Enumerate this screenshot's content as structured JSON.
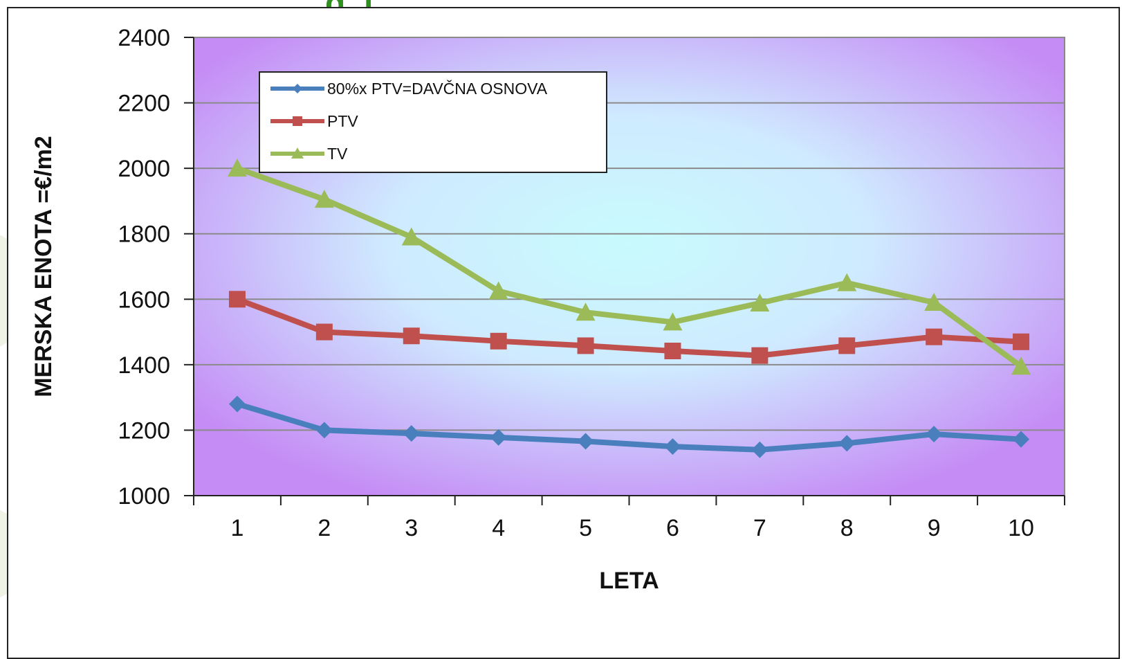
{
  "header": {
    "title_fragment": "g, j"
  },
  "colors": {
    "plot_bg_center": "#c8fbfd",
    "plot_bg_edge": "#c58cf5",
    "series_blue": "#4a7fbe",
    "series_red": "#c0504d",
    "series_green": "#9bbb59",
    "title_green": "#2f8f1f"
  },
  "chart_data": {
    "type": "line",
    "title": "",
    "xlabel": "LETA",
    "ylabel": "MERSKA ENOTA =€/m2",
    "x": [
      1,
      2,
      3,
      4,
      5,
      6,
      7,
      8,
      9,
      10
    ],
    "categories": [
      "1",
      "2",
      "3",
      "4",
      "5",
      "6",
      "7",
      "8",
      "9",
      "10"
    ],
    "ylim": [
      1000,
      2400
    ],
    "yticks": [
      1000,
      1200,
      1400,
      1600,
      1800,
      2000,
      2200,
      2400
    ],
    "ytick_labels": [
      "1000",
      "1200",
      "1400",
      "1600",
      "1800",
      "2000",
      "2200",
      "2400"
    ],
    "grid": true,
    "legend_position": "top-left",
    "series": [
      {
        "name": "80%x PTV=DAVČNA OSNOVA",
        "marker": "diamond",
        "color": "#4a7fbe",
        "values": [
          1280,
          1200,
          1190,
          1178,
          1166,
          1150,
          1140,
          1160,
          1188,
          1172
        ]
      },
      {
        "name": "PTV",
        "marker": "square",
        "color": "#c0504d",
        "values": [
          1600,
          1500,
          1488,
          1472,
          1458,
          1442,
          1428,
          1458,
          1485,
          1470
        ]
      },
      {
        "name": "TV",
        "marker": "triangle",
        "color": "#9bbb59",
        "values": [
          2000,
          1905,
          1790,
          1625,
          1560,
          1530,
          1588,
          1650,
          1590,
          1395
        ]
      }
    ]
  }
}
